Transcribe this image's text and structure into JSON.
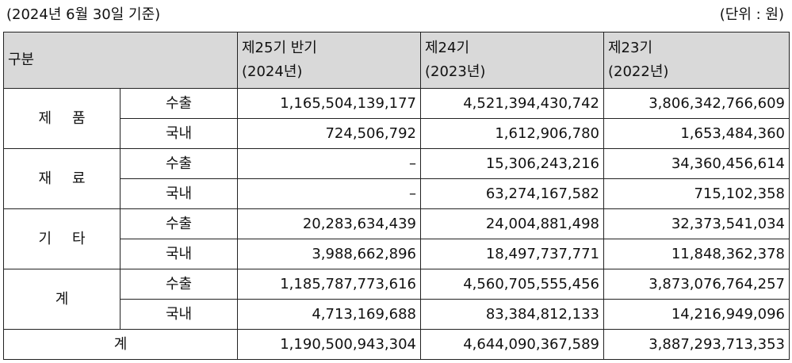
{
  "caption": {
    "date": "(2024년 6월 30일 기준)",
    "unit": "(단위 : 원)"
  },
  "table": {
    "header": {
      "category": "구분",
      "periods": [
        {
          "name": "제25기 반기",
          "year": "(2024년)"
        },
        {
          "name": "제24기",
          "year": "(2023년)"
        },
        {
          "name": "제23기",
          "year": "(2022년)"
        }
      ]
    },
    "groups": [
      {
        "name_a": "제",
        "name_b": "품",
        "rows": [
          {
            "type": "수출",
            "values": [
              "1,165,504,139,177",
              "4,521,394,430,742",
              "3,806,342,766,609"
            ]
          },
          {
            "type": "국내",
            "values": [
              "724,506,792",
              "1,612,906,780",
              "1,653,484,360"
            ]
          }
        ]
      },
      {
        "name_a": "재",
        "name_b": "료",
        "rows": [
          {
            "type": "수출",
            "values": [
              "–",
              "15,306,243,216",
              "34,360,456,614"
            ]
          },
          {
            "type": "국내",
            "values": [
              "–",
              "63,274,167,582",
              "715,102,358"
            ]
          }
        ]
      },
      {
        "name_a": "기",
        "name_b": "타",
        "rows": [
          {
            "type": "수출",
            "values": [
              "20,283,634,439",
              "24,004,881,498",
              "32,373,541,034"
            ]
          },
          {
            "type": "국내",
            "values": [
              "3,988,662,896",
              "18,497,737,771",
              "11,848,362,378"
            ]
          }
        ]
      },
      {
        "name_a": "계",
        "name_b": "",
        "rows": [
          {
            "type": "수출",
            "values": [
              "1,185,787,773,616",
              "4,560,705,555,456",
              "3,873,076,764,257"
            ]
          },
          {
            "type": "국내",
            "values": [
              "4,713,169,688",
              "83,384,812,133",
              "14,216,949,096"
            ]
          }
        ]
      }
    ],
    "total": {
      "label": "계",
      "values": [
        "1,190,500,943,304",
        "4,644,090,367,589",
        "3,887,293,713,353"
      ]
    }
  }
}
